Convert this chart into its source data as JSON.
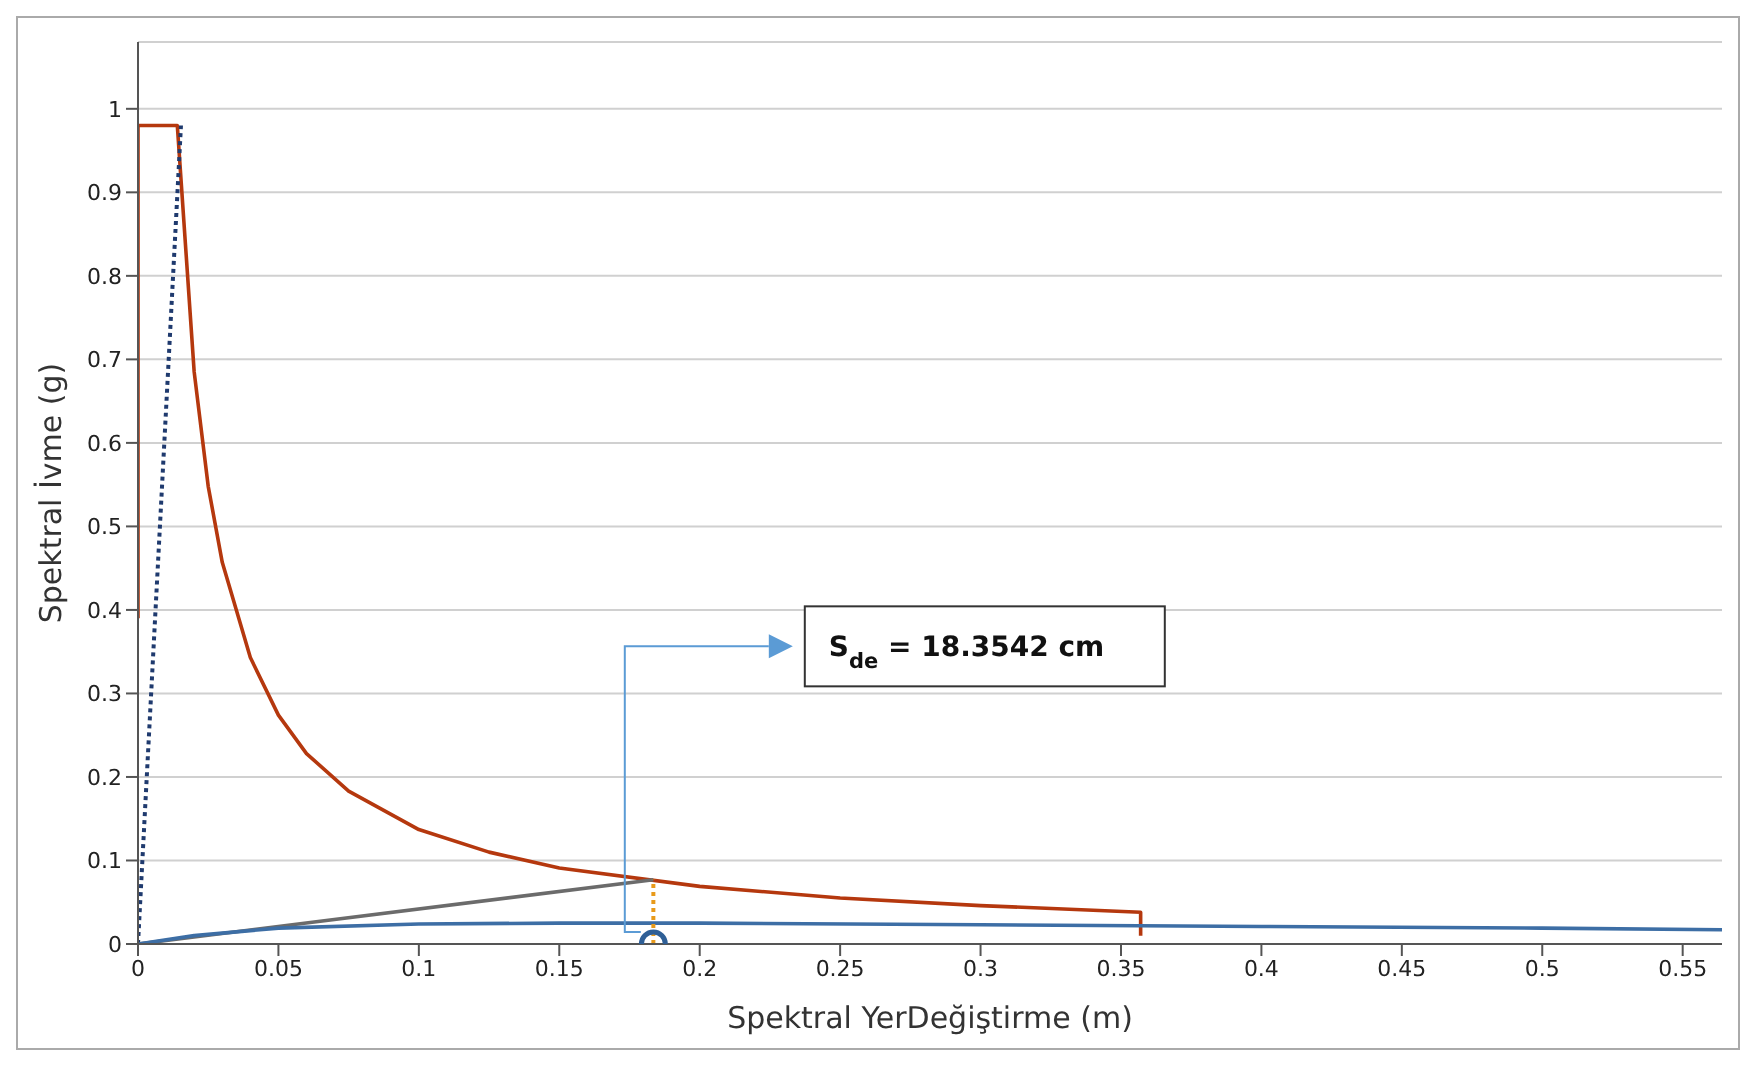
{
  "chart_data": {
    "type": "line",
    "xlabel": "Spektral YerDeğiştirme (m)",
    "ylabel": "Spektral İvme (g)",
    "xlim": [
      0,
      0.564
    ],
    "ylim": [
      0,
      1.08
    ],
    "xticks": [
      0,
      0.05,
      0.1,
      0.15,
      0.2,
      0.25,
      0.3,
      0.35,
      0.4,
      0.45,
      0.5,
      0.55
    ],
    "yticks": [
      0,
      0.1,
      0.2,
      0.3,
      0.4,
      0.5,
      0.6,
      0.7,
      0.8,
      0.9,
      1
    ],
    "grid": "y",
    "marker": "none",
    "line_style": "solid",
    "series": [
      {
        "color": "#b5380e",
        "x": [
          0,
          0,
          0.014,
          0.02,
          0.025,
          0.03,
          0.04,
          0.05,
          0.06,
          0.075,
          0.1,
          0.125,
          0.15,
          0.2,
          0.25,
          0.3,
          0.357,
          0.357
        ],
        "values": [
          0.39,
          0.98,
          0.98,
          0.685,
          0.548,
          0.457,
          0.343,
          0.274,
          0.228,
          0.183,
          0.137,
          0.11,
          0.091,
          0.069,
          0.055,
          0.046,
          0.038,
          0.01
        ]
      },
      {
        "color": "#1f3a6e",
        "line_style": "dotted",
        "x": [
          0,
          0.0153
        ],
        "values": [
          0,
          0.98
        ]
      },
      {
        "color": "#6b6b6b",
        "x": [
          0,
          0.1835
        ],
        "values": [
          0,
          0.077
        ]
      },
      {
        "color": "#3d6ea5",
        "x": [
          0,
          0.02,
          0.05,
          0.1,
          0.15,
          0.2,
          0.3,
          0.4,
          0.5,
          0.564
        ],
        "values": [
          0,
          0.01,
          0.019,
          0.024,
          0.025,
          0.025,
          0.023,
          0.021,
          0.019,
          0.017
        ]
      },
      {
        "color": "#e89a1a",
        "line_style": "dotted",
        "x": [
          0.1835,
          0.1835
        ],
        "values": [
          0,
          0.077
        ]
      },
      {
        "type": "scatter",
        "color": "#2f5f96",
        "marker": "circle",
        "x": [
          0.1835
        ],
        "values": [
          0
        ]
      }
    ],
    "annotations": [
      "S$_{de}$ = 18.3542 cm"
    ]
  }
}
